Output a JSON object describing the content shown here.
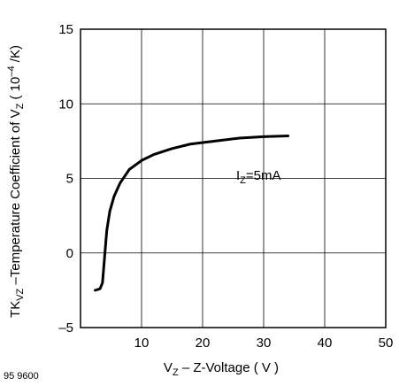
{
  "figure_id": "95 9600",
  "chart_data": {
    "type": "line",
    "xlabel": {
      "main": "V",
      "sub": "Z",
      "rest": " – Z-Voltage ( V )"
    },
    "ylabel": {
      "p1": "TK",
      "p1sub": "VZ",
      "p2": " –Temperature Coefficient of V",
      "p2sub": "Z",
      "p3": " ( 10",
      "p3sup": "–4",
      "p4": " /K)"
    },
    "xlim": [
      0,
      50
    ],
    "ylim": [
      -5,
      15
    ],
    "x_ticks": [
      10,
      20,
      30,
      40,
      50
    ],
    "y_ticks": [
      -5,
      0,
      5,
      10,
      15
    ],
    "x_tick_labels": [
      "10",
      "20",
      "30",
      "40",
      "50"
    ],
    "y_tick_labels": [
      "–5",
      "0",
      "5",
      "10",
      "15"
    ],
    "grid": true,
    "series": [
      {
        "line_color": "#000000",
        "points": [
          [
            2.4,
            -2.5
          ],
          [
            3.2,
            -2.4
          ],
          [
            3.6,
            -2.0
          ],
          [
            3.9,
            -0.5
          ],
          [
            4.3,
            1.5
          ],
          [
            4.8,
            2.8
          ],
          [
            5.5,
            3.8
          ],
          [
            6.5,
            4.7
          ],
          [
            8.0,
            5.6
          ],
          [
            10.0,
            6.2
          ],
          [
            12.0,
            6.6
          ],
          [
            15.0,
            7.0
          ],
          [
            18.0,
            7.3
          ],
          [
            22.0,
            7.5
          ],
          [
            26.0,
            7.7
          ],
          [
            30.0,
            7.8
          ],
          [
            34.0,
            7.85
          ]
        ]
      }
    ],
    "annotations": [
      {
        "main": "I",
        "sub": "Z",
        "rest": "=5mA",
        "x": 25.5,
        "y": 4.9
      }
    ]
  }
}
